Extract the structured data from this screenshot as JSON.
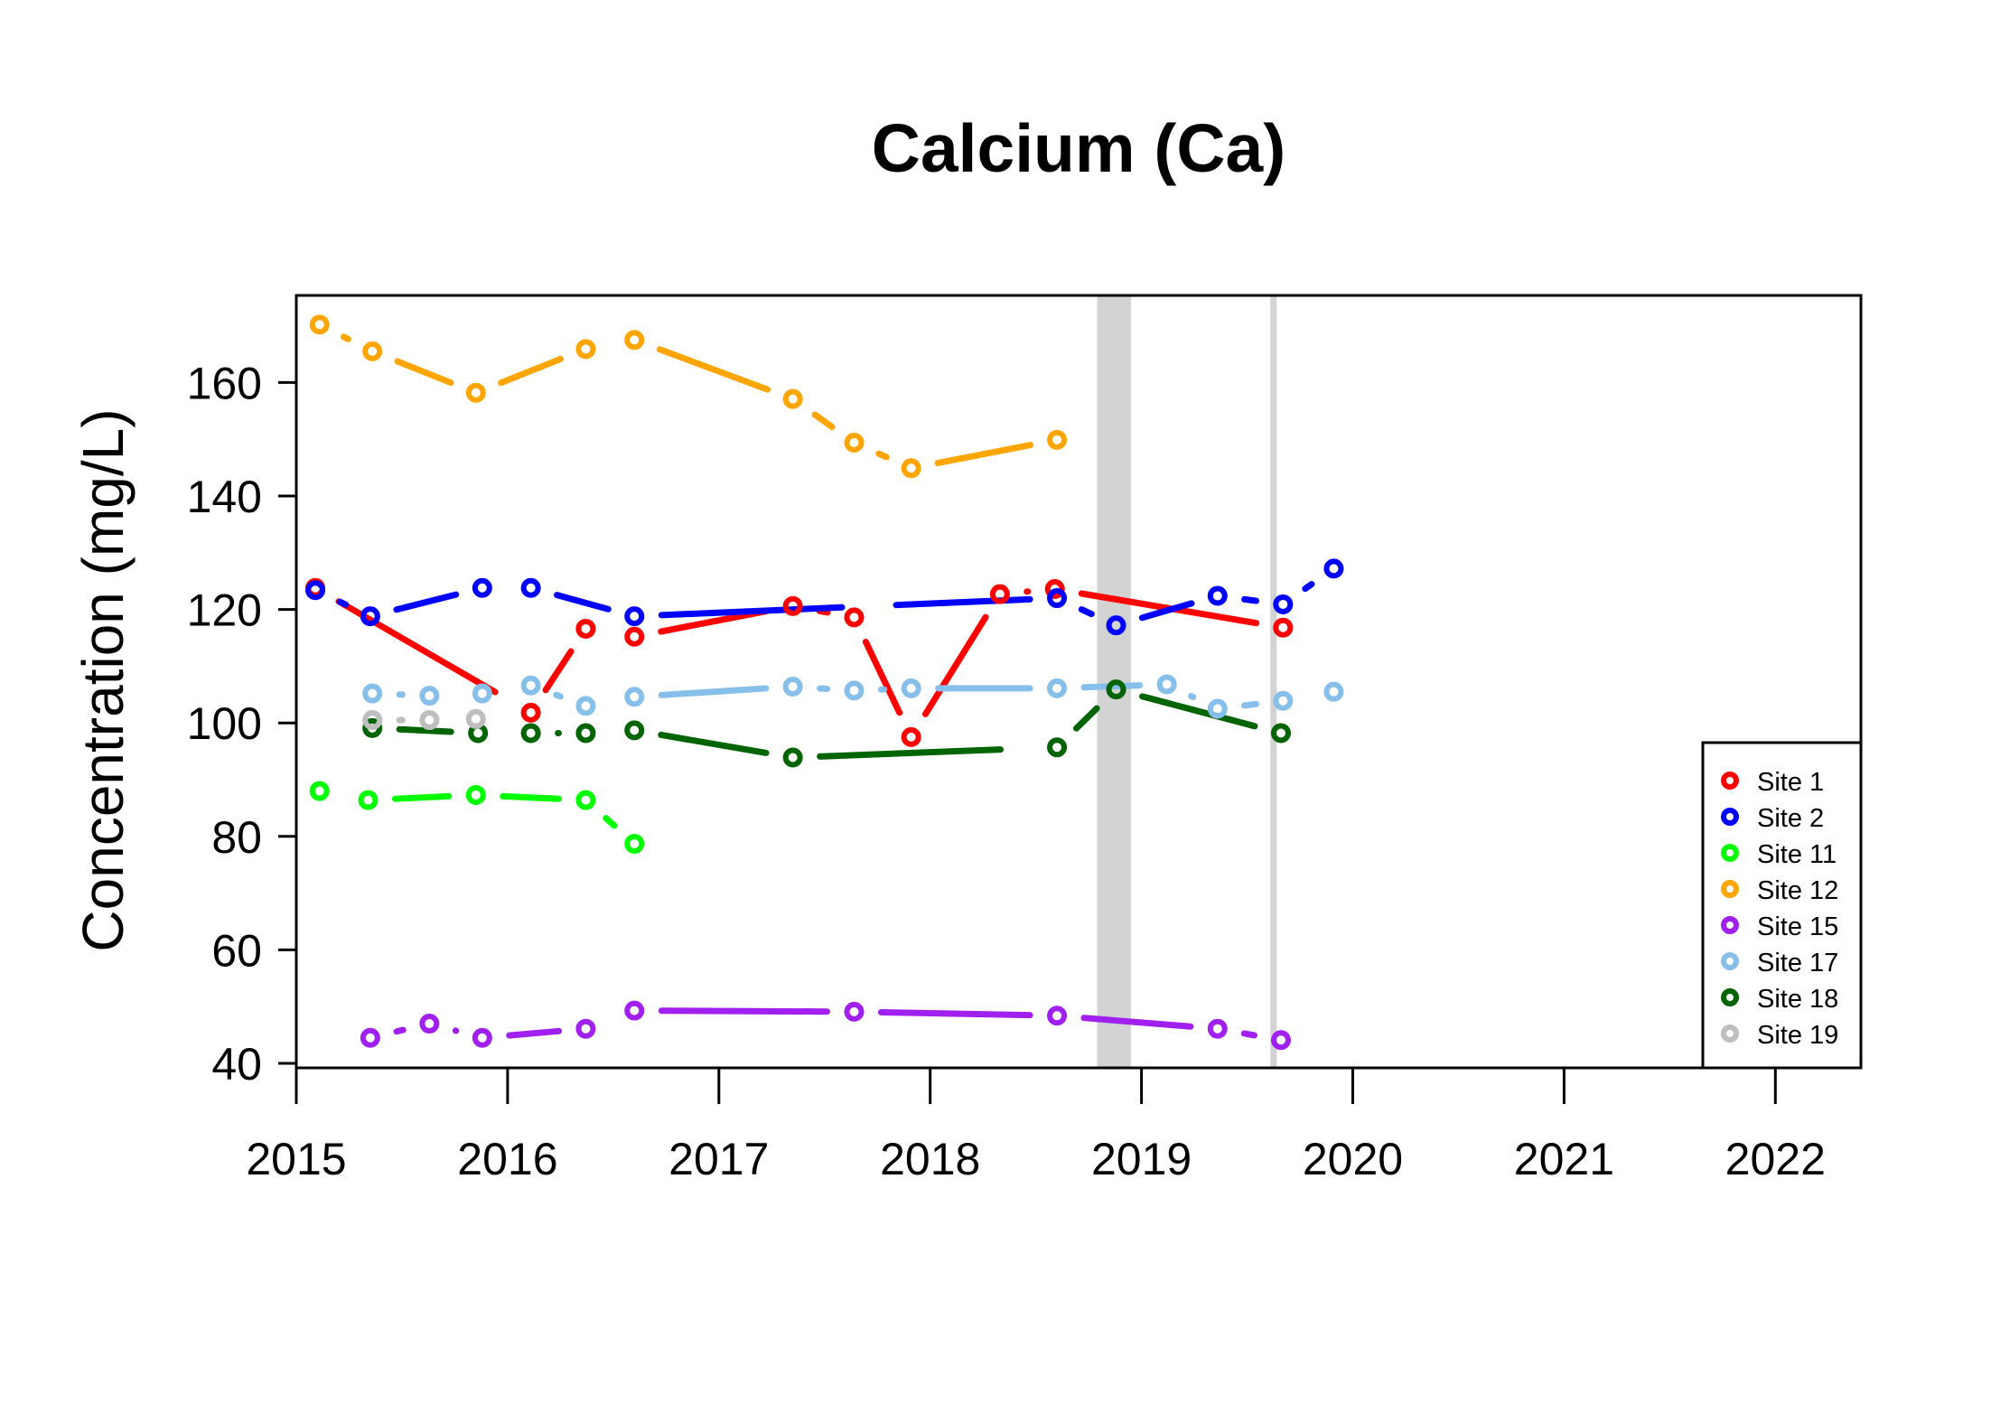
{
  "chart_data": {
    "type": "line",
    "title": "Calcium (Ca)",
    "xlabel": "",
    "ylabel": "Concentration (mg/L)",
    "xlim": [
      2015,
      2022.4
    ],
    "ylim": [
      38.5,
      175
    ],
    "x_ticks": [
      2015,
      2016,
      2017,
      2018,
      2019,
      2020,
      2021,
      2022
    ],
    "y_ticks": [
      40,
      60,
      80,
      100,
      120,
      140,
      160
    ],
    "grid": false,
    "legend_position": "bottom-right",
    "shaded_periods": [
      {
        "start": 2018.79,
        "end": 2018.95,
        "color": "#d3d3d3"
      },
      {
        "start": 2019.61,
        "end": 2019.64,
        "color": "#d3d3d3"
      }
    ],
    "series": [
      {
        "name": "Site 1",
        "color": "#ff0000",
        "dash": "long",
        "points": [
          [
            2015.09,
            123.8
          ],
          [
            2016.11,
            101.8
          ],
          [
            2016.37,
            116.6
          ],
          [
            2016.6,
            115.2
          ],
          [
            2017.35,
            120.6
          ],
          [
            2017.64,
            118.6
          ],
          [
            2017.91,
            97.5
          ],
          [
            2018.33,
            122.7
          ],
          [
            2018.59,
            123.6
          ],
          [
            2019.67,
            116.8
          ]
        ]
      },
      {
        "name": "Site 2",
        "color": "#0000ff",
        "dash": "long",
        "points": [
          [
            2015.09,
            123.4
          ],
          [
            2015.35,
            118.8
          ],
          [
            2015.88,
            123.8
          ],
          [
            2016.11,
            123.8
          ],
          [
            2016.6,
            118.8
          ],
          [
            2018.6,
            122.0
          ],
          [
            2018.88,
            117.2
          ],
          [
            2019.36,
            122.4
          ],
          [
            2019.67,
            120.9
          ],
          [
            2019.91,
            127.2
          ]
        ]
      },
      {
        "name": "Site 11",
        "color": "#00ff00",
        "dash": "long",
        "points": [
          [
            2015.11,
            88.0
          ],
          [
            2015.34,
            86.4
          ],
          [
            2015.85,
            87.3
          ],
          [
            2016.37,
            86.4
          ],
          [
            2016.6,
            78.7
          ]
        ]
      },
      {
        "name": "Site 12",
        "color": "#ffa500",
        "dash": "long",
        "points": [
          [
            2015.11,
            170.2
          ],
          [
            2015.36,
            165.5
          ],
          [
            2015.85,
            158.2
          ],
          [
            2016.37,
            165.9
          ],
          [
            2016.6,
            167.5
          ],
          [
            2017.35,
            157.1
          ],
          [
            2017.64,
            149.4
          ],
          [
            2017.91,
            144.9
          ],
          [
            2018.6,
            149.9
          ]
        ]
      },
      {
        "name": "Site 15",
        "color": "#a020f0",
        "dash": "long",
        "points": [
          [
            2015.35,
            44.5
          ],
          [
            2015.63,
            47.0
          ],
          [
            2015.88,
            44.5
          ],
          [
            2016.37,
            46.1
          ],
          [
            2016.6,
            49.3
          ],
          [
            2017.64,
            49.1
          ],
          [
            2018.6,
            48.4
          ],
          [
            2019.36,
            46.1
          ],
          [
            2019.66,
            44.1
          ]
        ]
      },
      {
        "name": "Site 17",
        "color": "#87bfeb",
        "dash": "long",
        "points": [
          [
            2015.36,
            105.2
          ],
          [
            2015.63,
            104.8
          ],
          [
            2015.88,
            105.2
          ],
          [
            2016.11,
            106.6
          ],
          [
            2016.37,
            103.0
          ],
          [
            2016.6,
            104.6
          ],
          [
            2017.35,
            106.4
          ],
          [
            2017.64,
            105.7
          ],
          [
            2017.91,
            106.1
          ],
          [
            2018.6,
            106.1
          ],
          [
            2019.12,
            106.8
          ],
          [
            2019.36,
            102.5
          ],
          [
            2019.67,
            103.9
          ],
          [
            2019.91,
            105.5
          ]
        ]
      },
      {
        "name": "Site 18",
        "color": "#006400",
        "dash": "long",
        "points": [
          [
            2015.36,
            99.1
          ],
          [
            2015.86,
            98.2
          ],
          [
            2016.11,
            98.2
          ],
          [
            2016.37,
            98.2
          ],
          [
            2016.6,
            98.7
          ],
          [
            2017.35,
            93.9
          ],
          [
            2018.6,
            95.7
          ],
          [
            2018.88,
            105.9
          ],
          [
            2019.66,
            98.2
          ]
        ]
      },
      {
        "name": "Site 19",
        "color": "#bebebe",
        "dash": "long",
        "points": [
          [
            2015.36,
            100.5
          ],
          [
            2015.63,
            100.5
          ],
          [
            2015.85,
            100.7
          ]
        ]
      }
    ]
  }
}
